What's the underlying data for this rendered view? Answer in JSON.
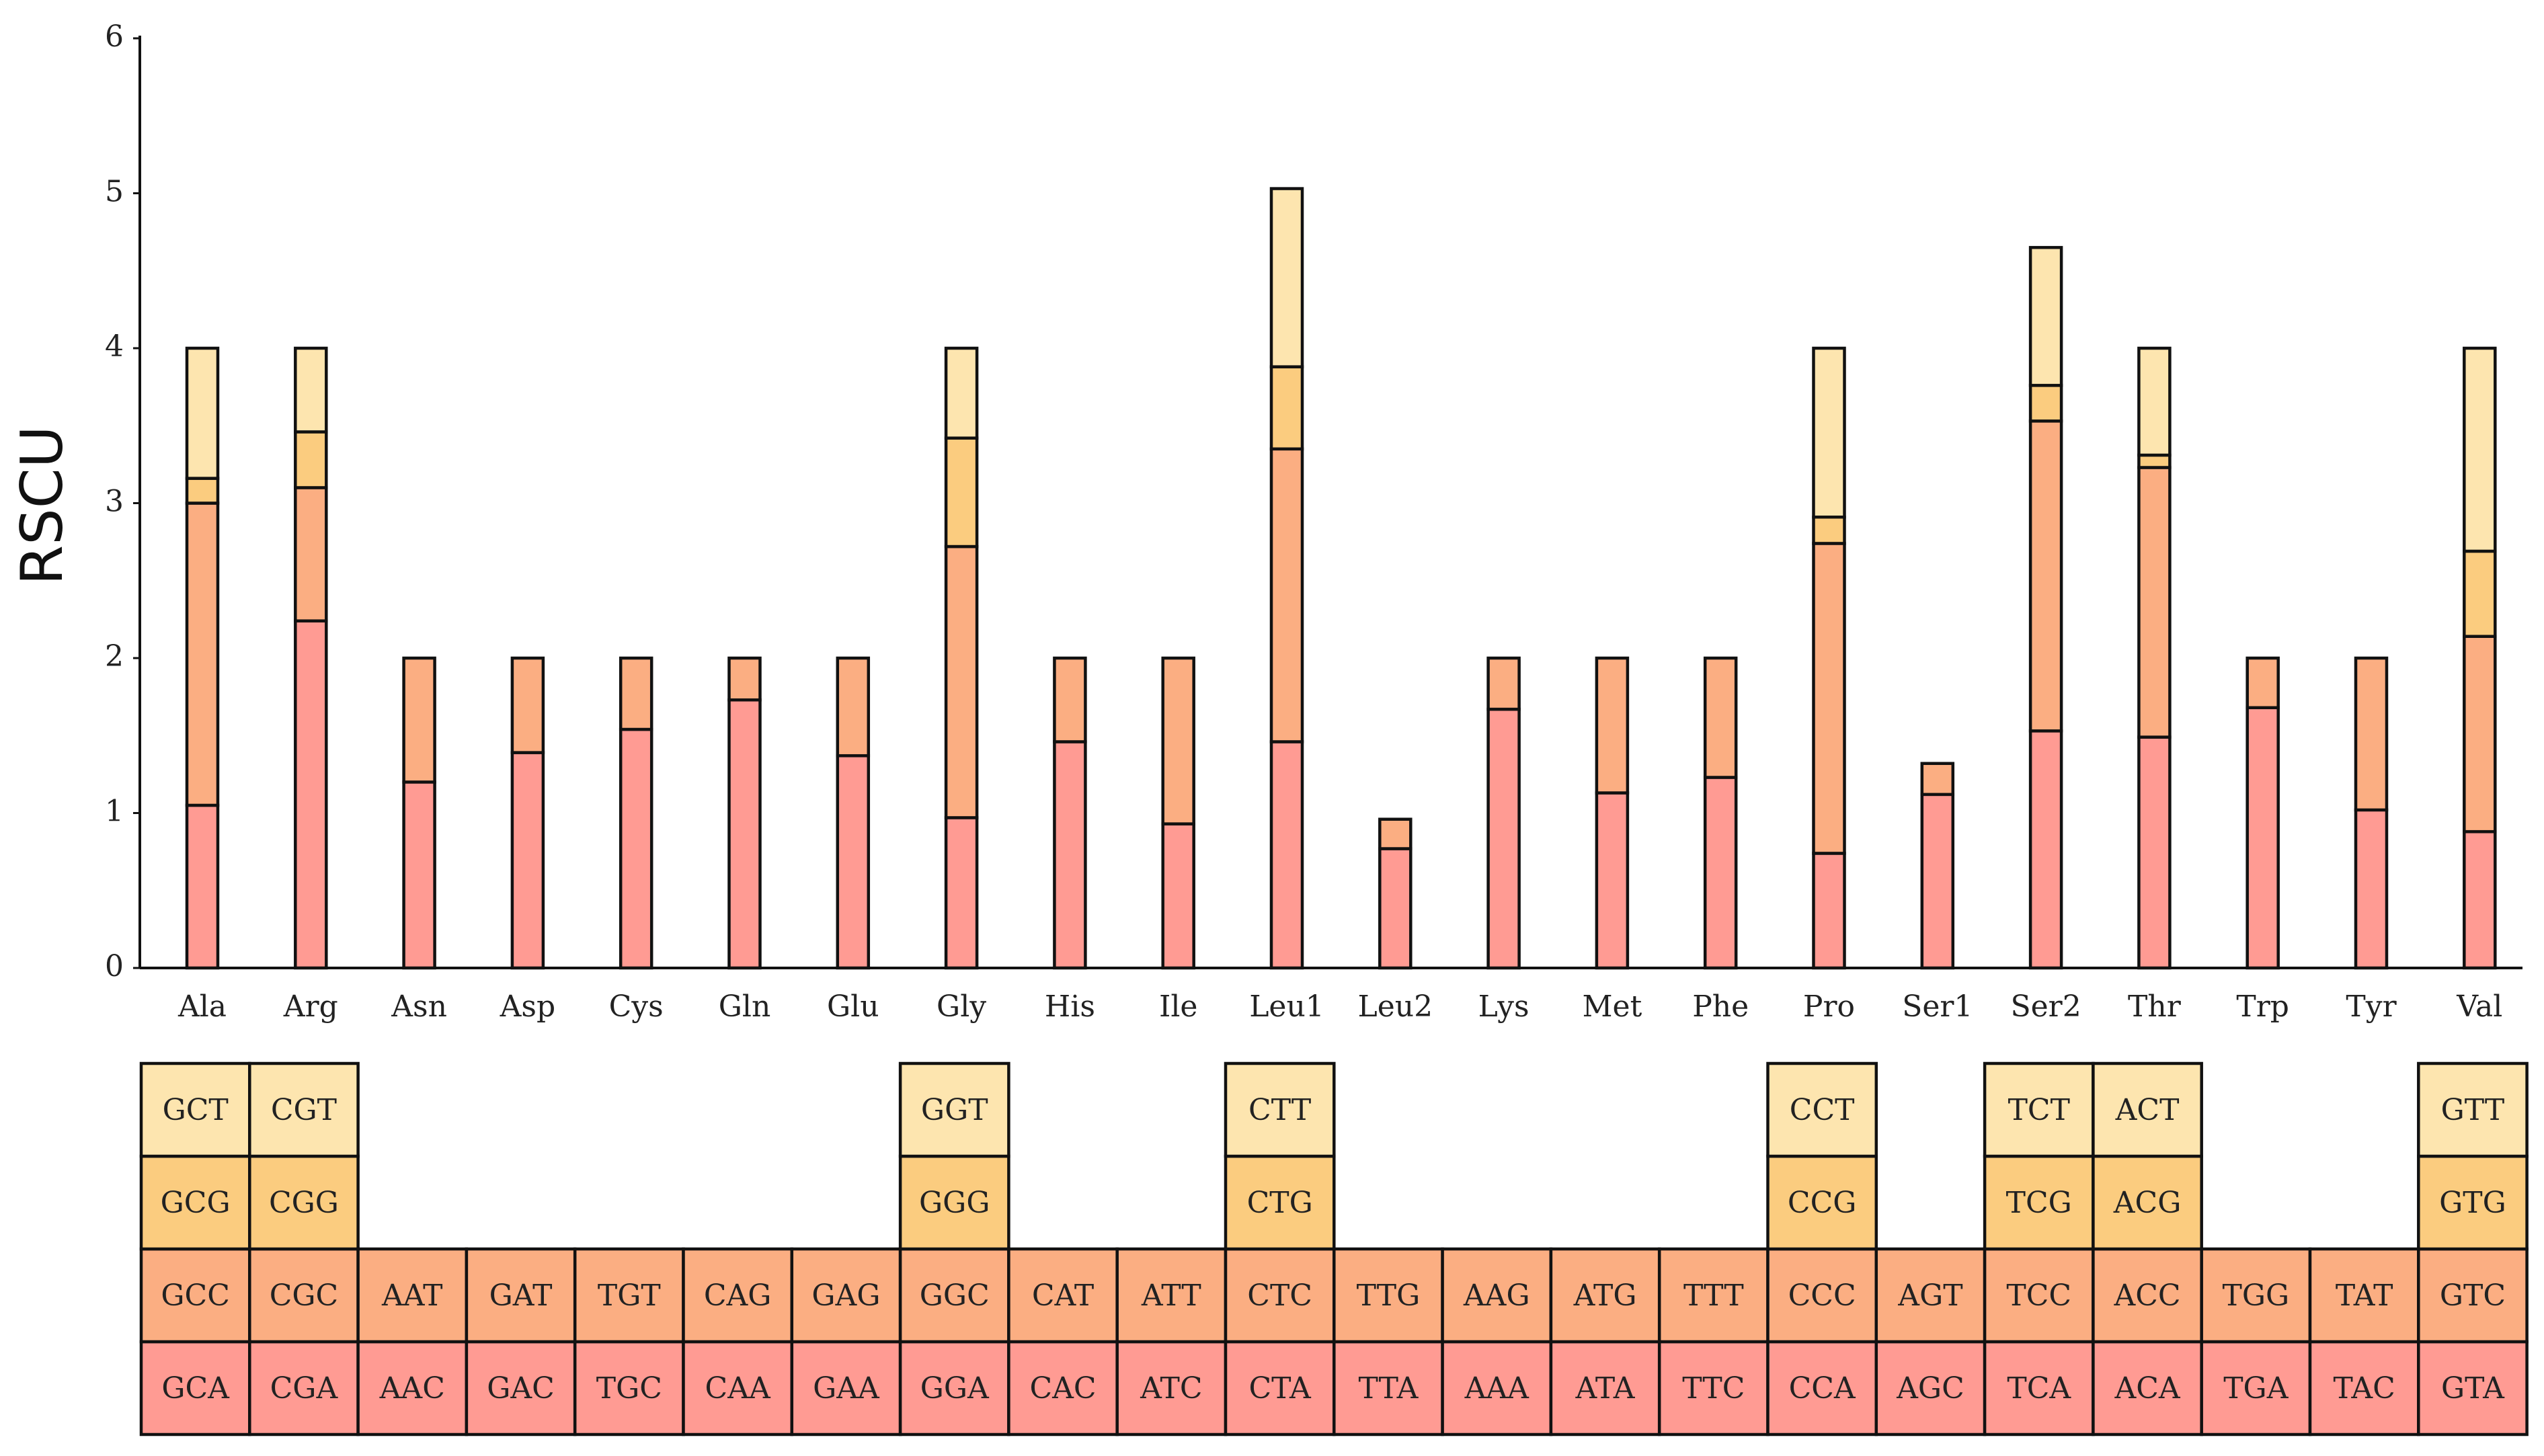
{
  "chart_data": {
    "type": "bar",
    "stacked": true,
    "ylabel": "RSCU",
    "xlabel": "",
    "ylim": [
      0,
      6
    ],
    "yticks": [
      0,
      1,
      2,
      3,
      4,
      5,
      6
    ],
    "layer_colors": [
      "#FF9B93",
      "#FBAE82",
      "#FBCC7F",
      "#FDE5AF"
    ],
    "categories": [
      "Ala",
      "Arg",
      "Asn",
      "Asp",
      "Cys",
      "Gln",
      "Glu",
      "Gly",
      "His",
      "Ile",
      "Leu1",
      "Leu2",
      "Lys",
      "Met",
      "Phe",
      "Pro",
      "Ser1",
      "Ser2",
      "Thr",
      "Trp",
      "Tyr",
      "Val"
    ],
    "segments": [
      [
        1.05,
        1.95,
        0.16,
        0.84
      ],
      [
        2.24,
        0.86,
        0.36,
        0.54
      ],
      [
        1.2,
        0.8
      ],
      [
        1.39,
        0.61
      ],
      [
        1.54,
        0.46
      ],
      [
        1.73,
        0.27
      ],
      [
        1.37,
        0.63
      ],
      [
        0.97,
        1.75,
        0.7,
        0.58
      ],
      [
        1.46,
        0.54
      ],
      [
        0.93,
        1.07
      ],
      [
        1.46,
        1.89,
        0.53,
        1.15
      ],
      [
        0.77,
        0.19
      ],
      [
        1.67,
        0.33
      ],
      [
        1.13,
        0.87
      ],
      [
        1.23,
        0.77
      ],
      [
        0.74,
        2.0,
        0.17,
        1.09
      ],
      [
        1.12,
        0.2
      ],
      [
        1.53,
        2.0,
        0.23,
        0.89
      ],
      [
        1.49,
        1.74,
        0.08,
        0.69
      ],
      [
        1.68,
        0.32
      ],
      [
        1.02,
        0.98
      ],
      [
        0.88,
        1.26,
        0.55,
        1.31
      ]
    ],
    "codons": [
      [
        "GCA",
        "GCC",
        "GCG",
        "GCT"
      ],
      [
        "CGA",
        "CGC",
        "CGG",
        "CGT"
      ],
      [
        "AAC",
        "AAT"
      ],
      [
        "GAC",
        "GAT"
      ],
      [
        "TGC",
        "TGT"
      ],
      [
        "CAA",
        "CAG"
      ],
      [
        "GAA",
        "GAG"
      ],
      [
        "GGA",
        "GGC",
        "GGG",
        "GGT"
      ],
      [
        "CAC",
        "CAT"
      ],
      [
        "ATC",
        "ATT"
      ],
      [
        "CTA",
        "CTC",
        "CTG",
        "CTT"
      ],
      [
        "TTA",
        "TTG"
      ],
      [
        "AAA",
        "AAG"
      ],
      [
        "ATA",
        "ATG"
      ],
      [
        "TTC",
        "TTT"
      ],
      [
        "CCA",
        "CCC",
        "CCG",
        "CCT"
      ],
      [
        "AGC",
        "AGT"
      ],
      [
        "TCA",
        "TCC",
        "TCG",
        "TCT"
      ],
      [
        "ACA",
        "ACC",
        "ACG",
        "ACT"
      ],
      [
        "TGA",
        "TGG"
      ],
      [
        "TAC",
        "TAT"
      ],
      [
        "GTA",
        "GTC",
        "GTG",
        "GTT"
      ]
    ]
  }
}
